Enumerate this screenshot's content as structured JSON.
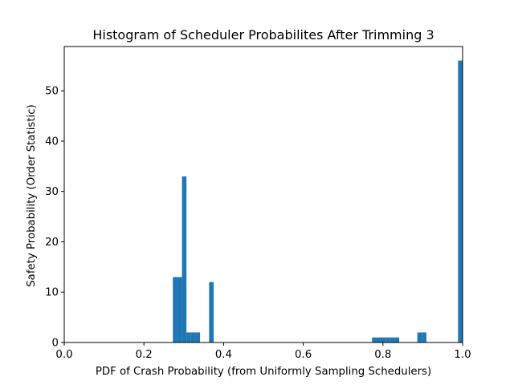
{
  "chart_data": {
    "type": "bar",
    "title": "Histogram of Scheduler Probabilites After Trimming 3",
    "xlabel": "PDF of Crash Probability (from Uniformly Sampling Schedulers)",
    "ylabel": "Safety Probability (Order Statistic)",
    "xlim": [
      0.0,
      1.0
    ],
    "ylim": [
      0,
      58.8
    ],
    "xticks": [
      0.0,
      0.2,
      0.4,
      0.6,
      0.8,
      1.0
    ],
    "xtick_labels": [
      "0.0",
      "0.2",
      "0.4",
      "0.6",
      "0.8",
      "1.0"
    ],
    "yticks": [
      0,
      10,
      20,
      30,
      40,
      50
    ],
    "ytick_labels": [
      "0",
      "10",
      "20",
      "30",
      "40",
      "50"
    ],
    "grid": false,
    "bar_color": "#1f77b4",
    "bins": [
      {
        "x0": 0.2727,
        "x1": 0.2841,
        "value": 13
      },
      {
        "x0": 0.2841,
        "x1": 0.2955,
        "value": 13
      },
      {
        "x0": 0.2955,
        "x1": 0.3068,
        "value": 33
      },
      {
        "x0": 0.3068,
        "x1": 0.3182,
        "value": 2
      },
      {
        "x0": 0.3182,
        "x1": 0.3295,
        "value": 2
      },
      {
        "x0": 0.3295,
        "x1": 0.3409,
        "value": 2
      },
      {
        "x0": 0.3636,
        "x1": 0.375,
        "value": 12
      },
      {
        "x0": 0.7727,
        "x1": 0.7841,
        "value": 1
      },
      {
        "x0": 0.7841,
        "x1": 0.7955,
        "value": 1
      },
      {
        "x0": 0.7955,
        "x1": 0.8068,
        "value": 1
      },
      {
        "x0": 0.8068,
        "x1": 0.8182,
        "value": 1
      },
      {
        "x0": 0.8182,
        "x1": 0.8295,
        "value": 1
      },
      {
        "x0": 0.8295,
        "x1": 0.8409,
        "value": 1
      },
      {
        "x0": 0.8864,
        "x1": 0.8977,
        "value": 2
      },
      {
        "x0": 0.8977,
        "x1": 0.9091,
        "value": 2
      },
      {
        "x0": 0.9886,
        "x1": 1.0,
        "value": 56
      }
    ]
  }
}
